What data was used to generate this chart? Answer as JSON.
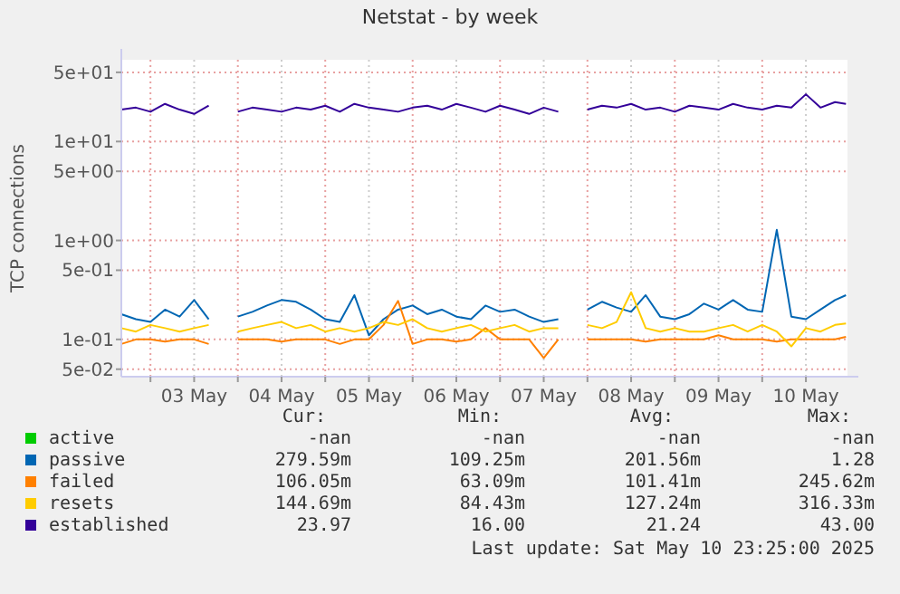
{
  "chart_data": {
    "type": "line",
    "title": "Netstat - by week",
    "ylabel": "TCP connections",
    "log": "y",
    "grid": true,
    "legend": "bottom",
    "line_style": "solid",
    "xlim": [
      "2025-05-02T16:00",
      "2025-05-10T23:25"
    ],
    "xticks": [
      {
        "value": "2025-05-03T00:00",
        "label": null
      },
      {
        "value": "2025-05-03T12:00",
        "label": "03 May"
      },
      {
        "value": "2025-05-04T00:00",
        "label": null
      },
      {
        "value": "2025-05-04T12:00",
        "label": "04 May"
      },
      {
        "value": "2025-05-05T00:00",
        "label": null
      },
      {
        "value": "2025-05-05T12:00",
        "label": "05 May"
      },
      {
        "value": "2025-05-06T00:00",
        "label": null
      },
      {
        "value": "2025-05-06T12:00",
        "label": "06 May"
      },
      {
        "value": "2025-05-07T00:00",
        "label": null
      },
      {
        "value": "2025-05-07T12:00",
        "label": "07 May"
      },
      {
        "value": "2025-05-08T00:00",
        "label": null
      },
      {
        "value": "2025-05-08T12:00",
        "label": "08 May"
      },
      {
        "value": "2025-05-09T00:00",
        "label": null
      },
      {
        "value": "2025-05-09T12:00",
        "label": "09 May"
      },
      {
        "value": "2025-05-10T00:00",
        "label": null
      },
      {
        "value": "2025-05-10T12:00",
        "label": "10 May"
      }
    ],
    "ylim": [
      0.042,
      67
    ],
    "yticks": [
      {
        "value": 0.05,
        "label": "5e-02"
      },
      {
        "value": 0.1,
        "label": "1e-01"
      },
      {
        "value": 0.5,
        "label": "5e-01"
      },
      {
        "value": 1,
        "label": "1e+00"
      },
      {
        "value": 5,
        "label": "5e+00"
      },
      {
        "value": 10,
        "label": "1e+01"
      },
      {
        "value": 50,
        "label": "5e+01"
      }
    ],
    "x": [
      "2025-05-02T16:00",
      "2025-05-02T20:00",
      "2025-05-03T00:00",
      "2025-05-03T04:00",
      "2025-05-03T08:00",
      "2025-05-03T12:00",
      "2025-05-03T16:00",
      "2025-05-03T20:00",
      "2025-05-04T00:00",
      "2025-05-04T04:00",
      "2025-05-04T08:00",
      "2025-05-04T12:00",
      "2025-05-04T16:00",
      "2025-05-04T20:00",
      "2025-05-05T00:00",
      "2025-05-05T04:00",
      "2025-05-05T08:00",
      "2025-05-05T12:00",
      "2025-05-05T16:00",
      "2025-05-05T20:00",
      "2025-05-06T00:00",
      "2025-05-06T04:00",
      "2025-05-06T08:00",
      "2025-05-06T12:00",
      "2025-05-06T16:00",
      "2025-05-06T20:00",
      "2025-05-07T00:00",
      "2025-05-07T04:00",
      "2025-05-07T08:00",
      "2025-05-07T12:00",
      "2025-05-07T16:00",
      "2025-05-07T20:00",
      "2025-05-08T00:00",
      "2025-05-08T04:00",
      "2025-05-08T08:00",
      "2025-05-08T12:00",
      "2025-05-08T16:00",
      "2025-05-08T20:00",
      "2025-05-09T00:00",
      "2025-05-09T04:00",
      "2025-05-09T08:00",
      "2025-05-09T12:00",
      "2025-05-09T16:00",
      "2025-05-09T20:00",
      "2025-05-10T00:00",
      "2025-05-10T04:00",
      "2025-05-10T08:00",
      "2025-05-10T12:00",
      "2025-05-10T16:00",
      "2025-05-10T20:00",
      "2025-05-10T23:00"
    ],
    "series": [
      {
        "name": "active",
        "color": "#00cc00",
        "values": [
          null,
          null,
          null,
          null,
          null,
          null,
          null,
          null,
          null,
          null,
          null,
          null,
          null,
          null,
          null,
          null,
          null,
          null,
          null,
          null,
          null,
          null,
          null,
          null,
          null,
          null,
          null,
          null,
          null,
          null,
          null,
          null,
          null,
          null,
          null,
          null,
          null,
          null,
          null,
          null,
          null,
          null,
          null,
          null,
          null,
          null,
          null,
          null,
          null,
          null,
          null
        ]
      },
      {
        "name": "passive",
        "color": "#0066b3",
        "values": [
          0.18,
          0.16,
          0.15,
          0.2,
          0.17,
          0.25,
          0.16,
          null,
          0.17,
          0.19,
          0.22,
          0.25,
          0.24,
          0.2,
          0.16,
          0.15,
          0.28,
          0.11,
          0.16,
          0.2,
          0.22,
          0.18,
          0.2,
          0.17,
          0.16,
          0.22,
          0.19,
          0.2,
          0.17,
          0.15,
          0.16,
          null,
          0.2,
          0.24,
          0.21,
          0.19,
          0.28,
          0.17,
          0.16,
          0.18,
          0.23,
          0.2,
          0.25,
          0.2,
          0.19,
          1.28,
          0.17,
          0.16,
          0.2,
          0.25,
          0.28
        ]
      },
      {
        "name": "failed",
        "color": "#ff8000",
        "values": [
          0.09,
          0.1,
          0.1,
          0.095,
          0.1,
          0.1,
          0.09,
          null,
          0.1,
          0.1,
          0.1,
          0.095,
          0.1,
          0.1,
          0.1,
          0.09,
          0.1,
          0.1,
          0.14,
          0.245,
          0.09,
          0.1,
          0.1,
          0.095,
          0.1,
          0.13,
          0.1,
          0.1,
          0.1,
          0.065,
          0.1,
          null,
          0.1,
          0.1,
          0.1,
          0.1,
          0.095,
          0.1,
          0.1,
          0.1,
          0.1,
          0.11,
          0.1,
          0.1,
          0.1,
          0.095,
          0.1,
          0.1,
          0.1,
          0.1,
          0.106
        ]
      },
      {
        "name": "resets",
        "color": "#ffcc00",
        "values": [
          0.13,
          0.12,
          0.14,
          0.13,
          0.12,
          0.13,
          0.14,
          null,
          0.12,
          0.13,
          0.14,
          0.15,
          0.13,
          0.14,
          0.12,
          0.13,
          0.12,
          0.13,
          0.15,
          0.14,
          0.16,
          0.13,
          0.12,
          0.13,
          0.14,
          0.12,
          0.13,
          0.14,
          0.12,
          0.13,
          0.13,
          null,
          0.14,
          0.13,
          0.15,
          0.3,
          0.13,
          0.12,
          0.13,
          0.12,
          0.12,
          0.13,
          0.14,
          0.12,
          0.14,
          0.12,
          0.085,
          0.13,
          0.12,
          0.14,
          0.145
        ]
      },
      {
        "name": "established",
        "color": "#330099",
        "values": [
          21,
          22,
          20,
          24,
          21,
          19,
          23,
          null,
          20,
          22,
          21,
          20,
          22,
          21,
          23,
          20,
          24,
          22,
          21,
          20,
          22,
          23,
          21,
          24,
          22,
          20,
          23,
          21,
          19,
          22,
          20,
          null,
          21,
          23,
          22,
          24,
          21,
          22,
          20,
          23,
          22,
          21,
          24,
          22,
          21,
          23,
          22,
          30,
          22,
          25,
          24
        ]
      }
    ],
    "annotations": [
      "Cur:",
      "Min:",
      "Avg:",
      "Max:",
      "-nan",
      "-nan",
      "-nan",
      "-nan",
      "279.59m",
      "109.25m",
      "201.56m",
      "1.28",
      "106.05m",
      "63.09m",
      "101.41m",
      "245.62m",
      "144.69m",
      "84.43m",
      "127.24m",
      "316.33m",
      "23.97",
      "16.00",
      "21.24",
      "43.00",
      "Last update: Sat May 10 23:25:00 2025"
    ]
  }
}
